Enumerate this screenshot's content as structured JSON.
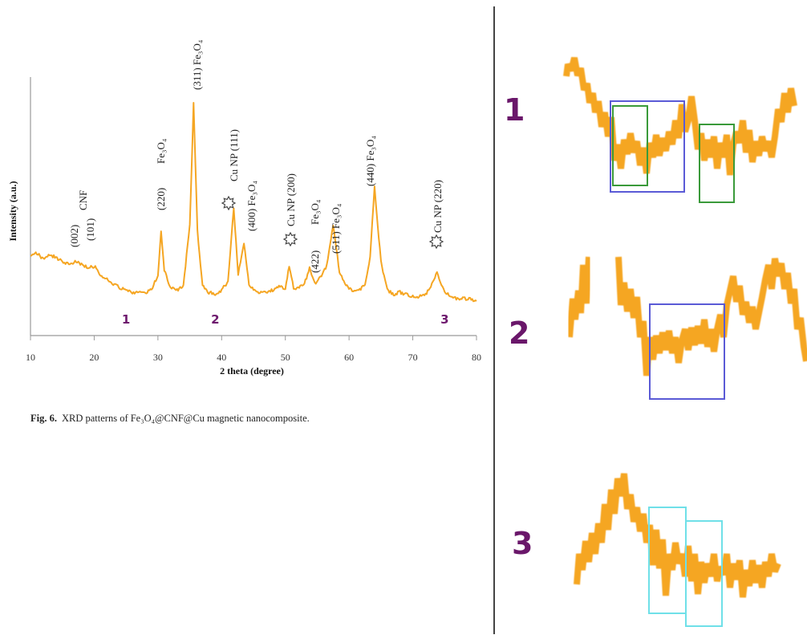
{
  "chart_data": {
    "type": "line",
    "ylabel": "Intensity (a.u.)",
    "xlabel": "2 theta (degree)",
    "xlim": [
      10,
      80
    ],
    "x_ticks": [
      "10",
      "20",
      "30",
      "40",
      "50",
      "60",
      "70",
      "80"
    ],
    "line_color": "#f5a623",
    "series": [
      {
        "x": [
          10,
          11,
          12,
          13,
          14,
          15,
          16,
          17,
          18,
          19,
          20,
          21,
          22,
          23,
          24,
          25,
          26,
          27,
          28,
          29,
          30,
          30.5,
          31,
          32,
          33,
          34,
          35,
          35.6,
          36.2,
          37,
          38,
          39,
          40,
          41,
          41.9,
          42.6,
          43.5,
          44.3,
          45,
          46,
          47,
          48,
          49,
          50,
          50.6,
          51.3,
          52,
          53,
          53.8,
          54.6,
          55.5,
          56.5,
          57.5,
          58.5,
          59.5,
          60.5,
          61.5,
          62.5,
          63.3,
          64,
          65,
          66,
          67,
          68,
          69,
          70,
          71,
          72,
          73,
          73.8,
          75,
          76,
          77,
          78,
          79,
          80
        ],
        "y": [
          30,
          32,
          29,
          31,
          30,
          28,
          27,
          28,
          27,
          25,
          26,
          22,
          20,
          18,
          16,
          15,
          14,
          14,
          14,
          15,
          22,
          42,
          24,
          16,
          15,
          17,
          45,
          100,
          42,
          17,
          14,
          13,
          15,
          19,
          52,
          22,
          37,
          18,
          15,
          14,
          14,
          15,
          17,
          15,
          26,
          16,
          16,
          18,
          25,
          18,
          21,
          26,
          45,
          23,
          17,
          15,
          15,
          17,
          30,
          62,
          28,
          15,
          13,
          14,
          13,
          12,
          12,
          13,
          18,
          23,
          14,
          12,
          11,
          11,
          11,
          10
        ]
      }
    ],
    "peak_labels": [
      {
        "text": "(002)",
        "angle": 19
      },
      {
        "text": "(101)",
        "angle": 20
      },
      {
        "text": "CNF",
        "angle": 20
      },
      {
        "text": "(220)",
        "angle": 30.5
      },
      {
        "text": "Fe₃O₄",
        "angle": 30.5
      },
      {
        "text": "(311) Fe₃O₄",
        "angle": 35.6
      },
      {
        "text": "Cu NP (111)",
        "angle": 41.9
      },
      {
        "text": "(400) Fe₃O₄",
        "angle": 43.5
      },
      {
        "text": "Cu NP (200)",
        "angle": 50.6
      },
      {
        "text": "(422)",
        "angle": 53.8
      },
      {
        "text": "Fe₃O₄",
        "angle": 53.8
      },
      {
        "text": "(511) Fe₃O₄",
        "angle": 57.5
      },
      {
        "text": "(440) Fe₃O₄",
        "angle": 63.3
      },
      {
        "text": "Cu NP (220)",
        "angle": 73.8
      }
    ],
    "region_markers": [
      {
        "label": "1",
        "x": 25
      },
      {
        "label": "2",
        "x": 39
      },
      {
        "label": "3",
        "x": 75
      }
    ]
  },
  "caption": {
    "prefix": "Fig. 6.",
    "text": "XRD patterns of Fe₃O₄@CNF@Cu magnetic nanocomposite."
  },
  "zoom_panels": [
    {
      "label": "1",
      "box_colors": [
        "#5a5ad6",
        "#3a9a3a"
      ]
    },
    {
      "label": "2",
      "box_colors": [
        "#5a5ad6"
      ]
    },
    {
      "label": "3",
      "box_colors": [
        "#6fe0e8"
      ]
    }
  ]
}
